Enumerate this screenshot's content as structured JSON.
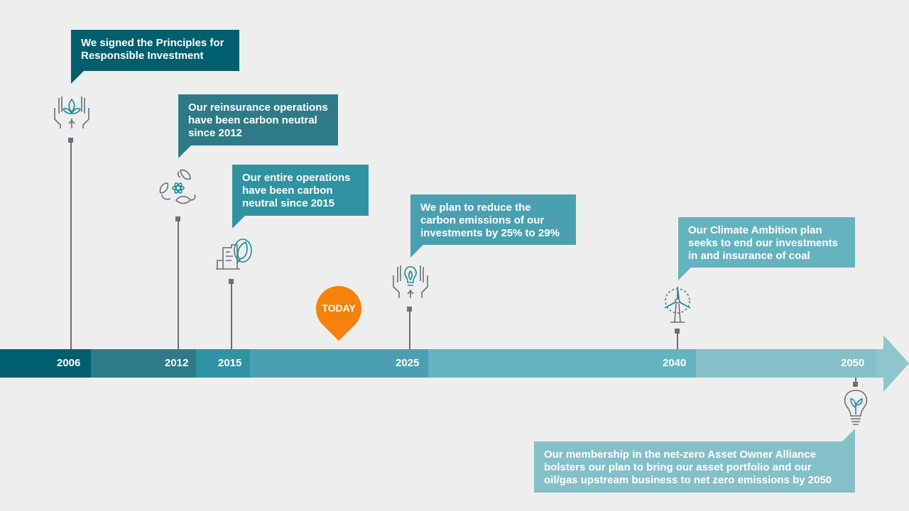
{
  "colors": {
    "background": "#eeeeee",
    "today": "#f5820a",
    "icon_gray": "#6b6e73",
    "icon_teal": "#1b8b9a"
  },
  "milestones": [
    {
      "year": "2006",
      "text": "We signed the Principles for Responsible Investment",
      "color": "#005f6e",
      "icon": "hands-plant-icon"
    },
    {
      "year": "2012",
      "text": "Our reinsurance operations have been carbon neutral since 2012",
      "color": "#2e7b87",
      "icon": "recycle-leaves-icon"
    },
    {
      "year": "2015",
      "text": "Our entire operations have been carbon neutral since 2015",
      "color": "#2f93a2",
      "icon": "building-leaf-icon"
    },
    {
      "year": "2025",
      "text": "We plan to reduce the carbon emissions of our investments by 25% to 29%",
      "color": "#4aa0b0",
      "icon": "hands-bulb-icon"
    },
    {
      "year": "2040",
      "text": "Our Climate Ambition plan seeks to end our investments in and insurance of coal",
      "color": "#65b3bf",
      "icon": "wind-turbine-icon"
    },
    {
      "year": "2050",
      "text": "Our membership in the net-zero Asset Owner Alliance bolsters our plan to bring our asset portfolio and our oil/gas upstream business to net zero emissions by 2050",
      "color": "#85bfc7",
      "icon": "bulb-plant-icon"
    }
  ],
  "today_label": "TODAY",
  "arrow_color": "#8fc5cc"
}
